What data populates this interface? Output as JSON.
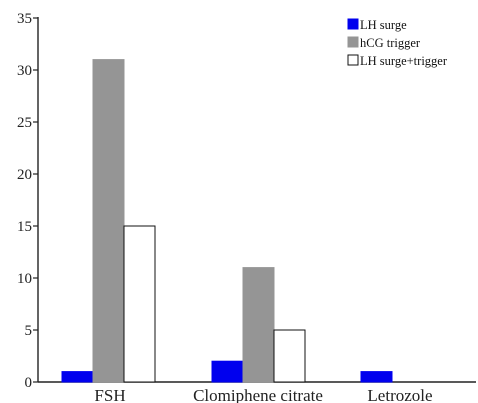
{
  "chart_data": {
    "type": "bar",
    "categories": [
      "FSH",
      "Clomiphene citrate",
      "Letrozole"
    ],
    "series": [
      {
        "name": "LH surge",
        "values": [
          1,
          2,
          1
        ],
        "color": "#0000ee",
        "stroke": "#0000ee"
      },
      {
        "name": "hCG trigger",
        "values": [
          31,
          11,
          0
        ],
        "color": "#959595",
        "stroke": "#959595"
      },
      {
        "name": "LH surge+trigger",
        "values": [
          15,
          5,
          0
        ],
        "color": "#ffffff",
        "stroke": "#111111"
      }
    ],
    "ylim": [
      0,
      35
    ],
    "yticks": [
      0,
      5,
      10,
      15,
      20,
      25,
      30,
      35
    ],
    "title": "",
    "xlabel": "",
    "ylabel": "",
    "grid": false,
    "legend_position": "top-right"
  }
}
